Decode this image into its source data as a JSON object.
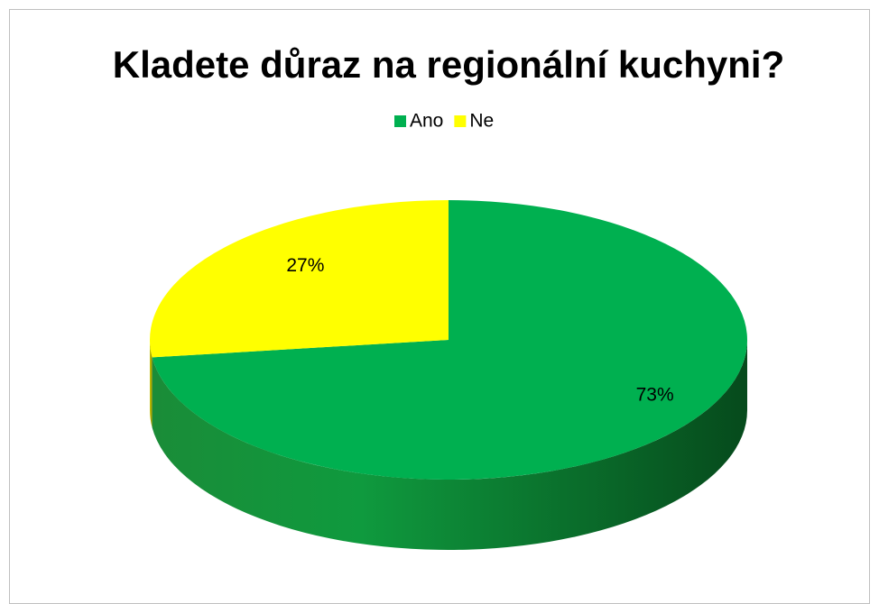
{
  "chart_data": {
    "type": "pie3d",
    "title": "Kladete důraz na regionální kuchyni?",
    "categories": [
      "Ano",
      "Ne"
    ],
    "values": [
      73,
      27
    ],
    "value_labels": [
      "73%",
      "27%"
    ],
    "colors": [
      "#00b050",
      "#ffff00"
    ],
    "legend": "top"
  }
}
